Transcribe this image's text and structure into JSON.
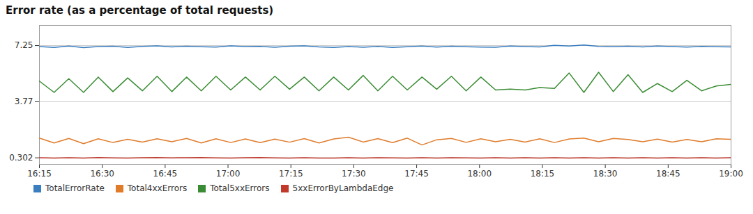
{
  "chart_data": {
    "type": "line",
    "title": "Error rate (as a percentage of total requests)",
    "x": [
      0,
      1,
      2,
      3,
      4,
      5,
      6,
      7,
      8,
      9,
      10,
      11,
      12,
      13,
      14,
      15,
      16,
      17,
      18,
      19,
      20,
      21,
      22,
      23,
      24,
      25,
      26,
      27,
      28,
      29,
      30,
      31,
      32,
      33,
      34,
      35,
      36,
      37,
      38,
      39,
      40,
      41,
      42,
      43,
      44,
      45,
      46,
      47
    ],
    "xlim": [
      0,
      47
    ],
    "xticks": [
      {
        "value": 0,
        "label": "16:15"
      },
      {
        "value": 4.272727272727273,
        "label": "16:30"
      },
      {
        "value": 8.545454545454545,
        "label": "16:45"
      },
      {
        "value": 12.818181818181818,
        "label": "17:00"
      },
      {
        "value": 17.09090909090909,
        "label": "17:15"
      },
      {
        "value": 21.363636363636363,
        "label": "17:30"
      },
      {
        "value": 25.636363636363637,
        "label": "17:45"
      },
      {
        "value": 29.90909090909091,
        "label": "18:00"
      },
      {
        "value": 34.18181818181818,
        "label": "18:15"
      },
      {
        "value": 38.45454545454545,
        "label": "18:30"
      },
      {
        "value": 42.72727272727273,
        "label": "18:45"
      },
      {
        "value": 47,
        "label": "19:00"
      }
    ],
    "ylim": [
      -0.1,
      8.5
    ],
    "yticks": [
      0.302,
      3.77,
      7.25
    ],
    "grid": true,
    "legend": "lower left",
    "series": [
      {
        "name": "TotalErrorRate",
        "color": "#3a7ebf",
        "values": [
          7.19,
          7.14,
          7.22,
          7.12,
          7.19,
          7.21,
          7.14,
          7.2,
          7.23,
          7.17,
          7.21,
          7.18,
          7.16,
          7.23,
          7.19,
          7.2,
          7.15,
          7.21,
          7.23,
          7.17,
          7.14,
          7.19,
          7.15,
          7.2,
          7.13,
          7.18,
          7.22,
          7.16,
          7.21,
          7.18,
          7.16,
          7.15,
          7.22,
          7.19,
          7.17,
          7.26,
          7.22,
          7.28,
          7.2,
          7.18,
          7.21,
          7.17,
          7.22,
          7.19,
          7.16,
          7.2,
          7.18,
          7.17
        ]
      },
      {
        "name": "Total4xxErrors",
        "color": "#e07b2a",
        "values": [
          1.52,
          1.22,
          1.5,
          1.18,
          1.48,
          1.25,
          1.45,
          1.28,
          1.48,
          1.3,
          1.5,
          1.22,
          1.48,
          1.25,
          1.47,
          1.24,
          1.46,
          1.27,
          1.49,
          1.22,
          1.47,
          1.58,
          1.28,
          1.49,
          1.24,
          1.52,
          1.1,
          1.42,
          1.5,
          1.26,
          1.48,
          1.3,
          1.45,
          1.28,
          1.48,
          1.25,
          1.47,
          1.52,
          1.3,
          1.5,
          1.44,
          1.3,
          1.46,
          1.28,
          1.44,
          1.3,
          1.48,
          1.45
        ]
      },
      {
        "name": "Total5xxErrors",
        "color": "#3a8c34",
        "values": [
          5.05,
          4.35,
          5.2,
          4.35,
          5.3,
          4.4,
          5.25,
          4.45,
          5.35,
          4.4,
          5.3,
          4.45,
          5.35,
          4.5,
          5.3,
          4.5,
          5.35,
          4.55,
          5.3,
          4.45,
          5.3,
          4.5,
          5.4,
          4.45,
          5.35,
          4.5,
          5.3,
          4.55,
          5.35,
          4.45,
          5.3,
          4.5,
          4.55,
          4.5,
          4.65,
          4.6,
          5.55,
          4.35,
          5.6,
          4.4,
          5.45,
          4.35,
          4.9,
          4.4,
          5.1,
          4.45,
          4.75,
          4.85
        ]
      },
      {
        "name": "5xxErrorByLambdaEdge",
        "color": "#c0392b",
        "values": [
          0.31,
          0.29,
          0.31,
          0.29,
          0.32,
          0.3,
          0.29,
          0.31,
          0.32,
          0.3,
          0.31,
          0.32,
          0.3,
          0.29,
          0.31,
          0.32,
          0.3,
          0.29,
          0.31,
          0.29,
          0.29,
          0.31,
          0.29,
          0.31,
          0.3,
          0.29,
          0.31,
          0.29,
          0.31,
          0.3,
          0.29,
          0.31,
          0.29,
          0.31,
          0.29,
          0.31,
          0.29,
          0.31,
          0.29,
          0.31,
          0.29,
          0.31,
          0.29,
          0.31,
          0.29,
          0.31,
          0.29,
          0.31
        ]
      }
    ]
  }
}
